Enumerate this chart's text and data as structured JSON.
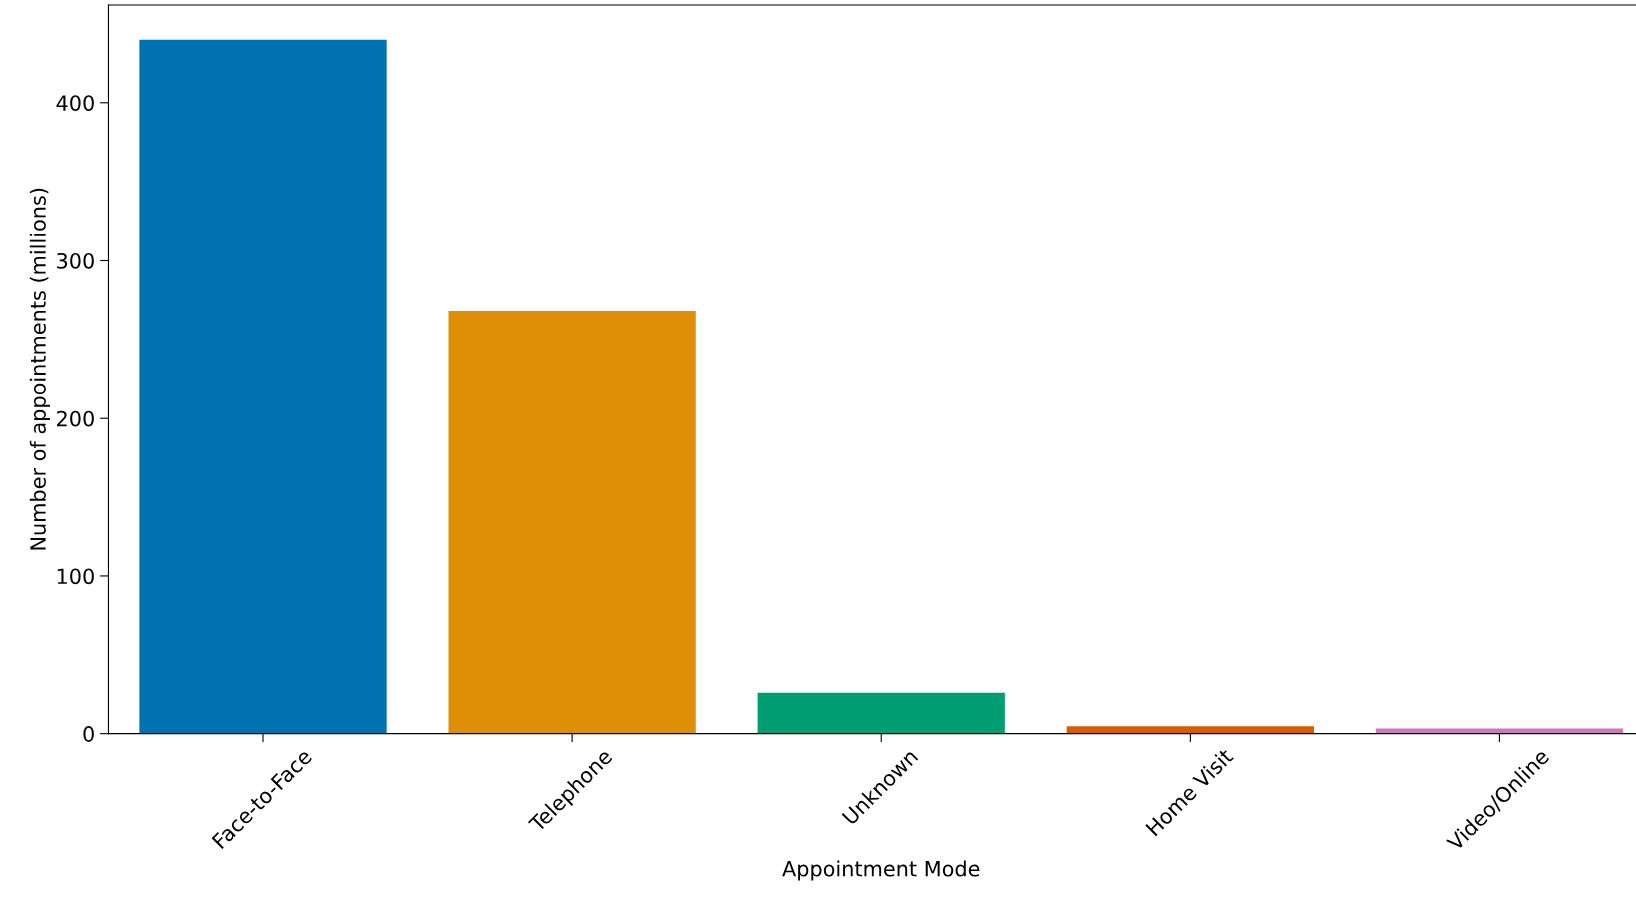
{
  "chart_data": {
    "type": "bar",
    "xlabel": "Appointment Mode",
    "ylabel": "Number of appointments (millions)",
    "categories": [
      "Face-to-Face",
      "Telephone",
      "Unknown",
      "Home Visit",
      "Video/Online"
    ],
    "values": [
      440,
      268,
      26,
      4.7,
      3.3
    ],
    "colors": [
      "#0173b2",
      "#de8f05",
      "#029e73",
      "#d55e00",
      "#cc78bc"
    ],
    "ylim": [
      0,
      462
    ],
    "yticks": [
      0,
      100,
      200,
      300,
      400
    ],
    "grid": false,
    "legend": false
  }
}
